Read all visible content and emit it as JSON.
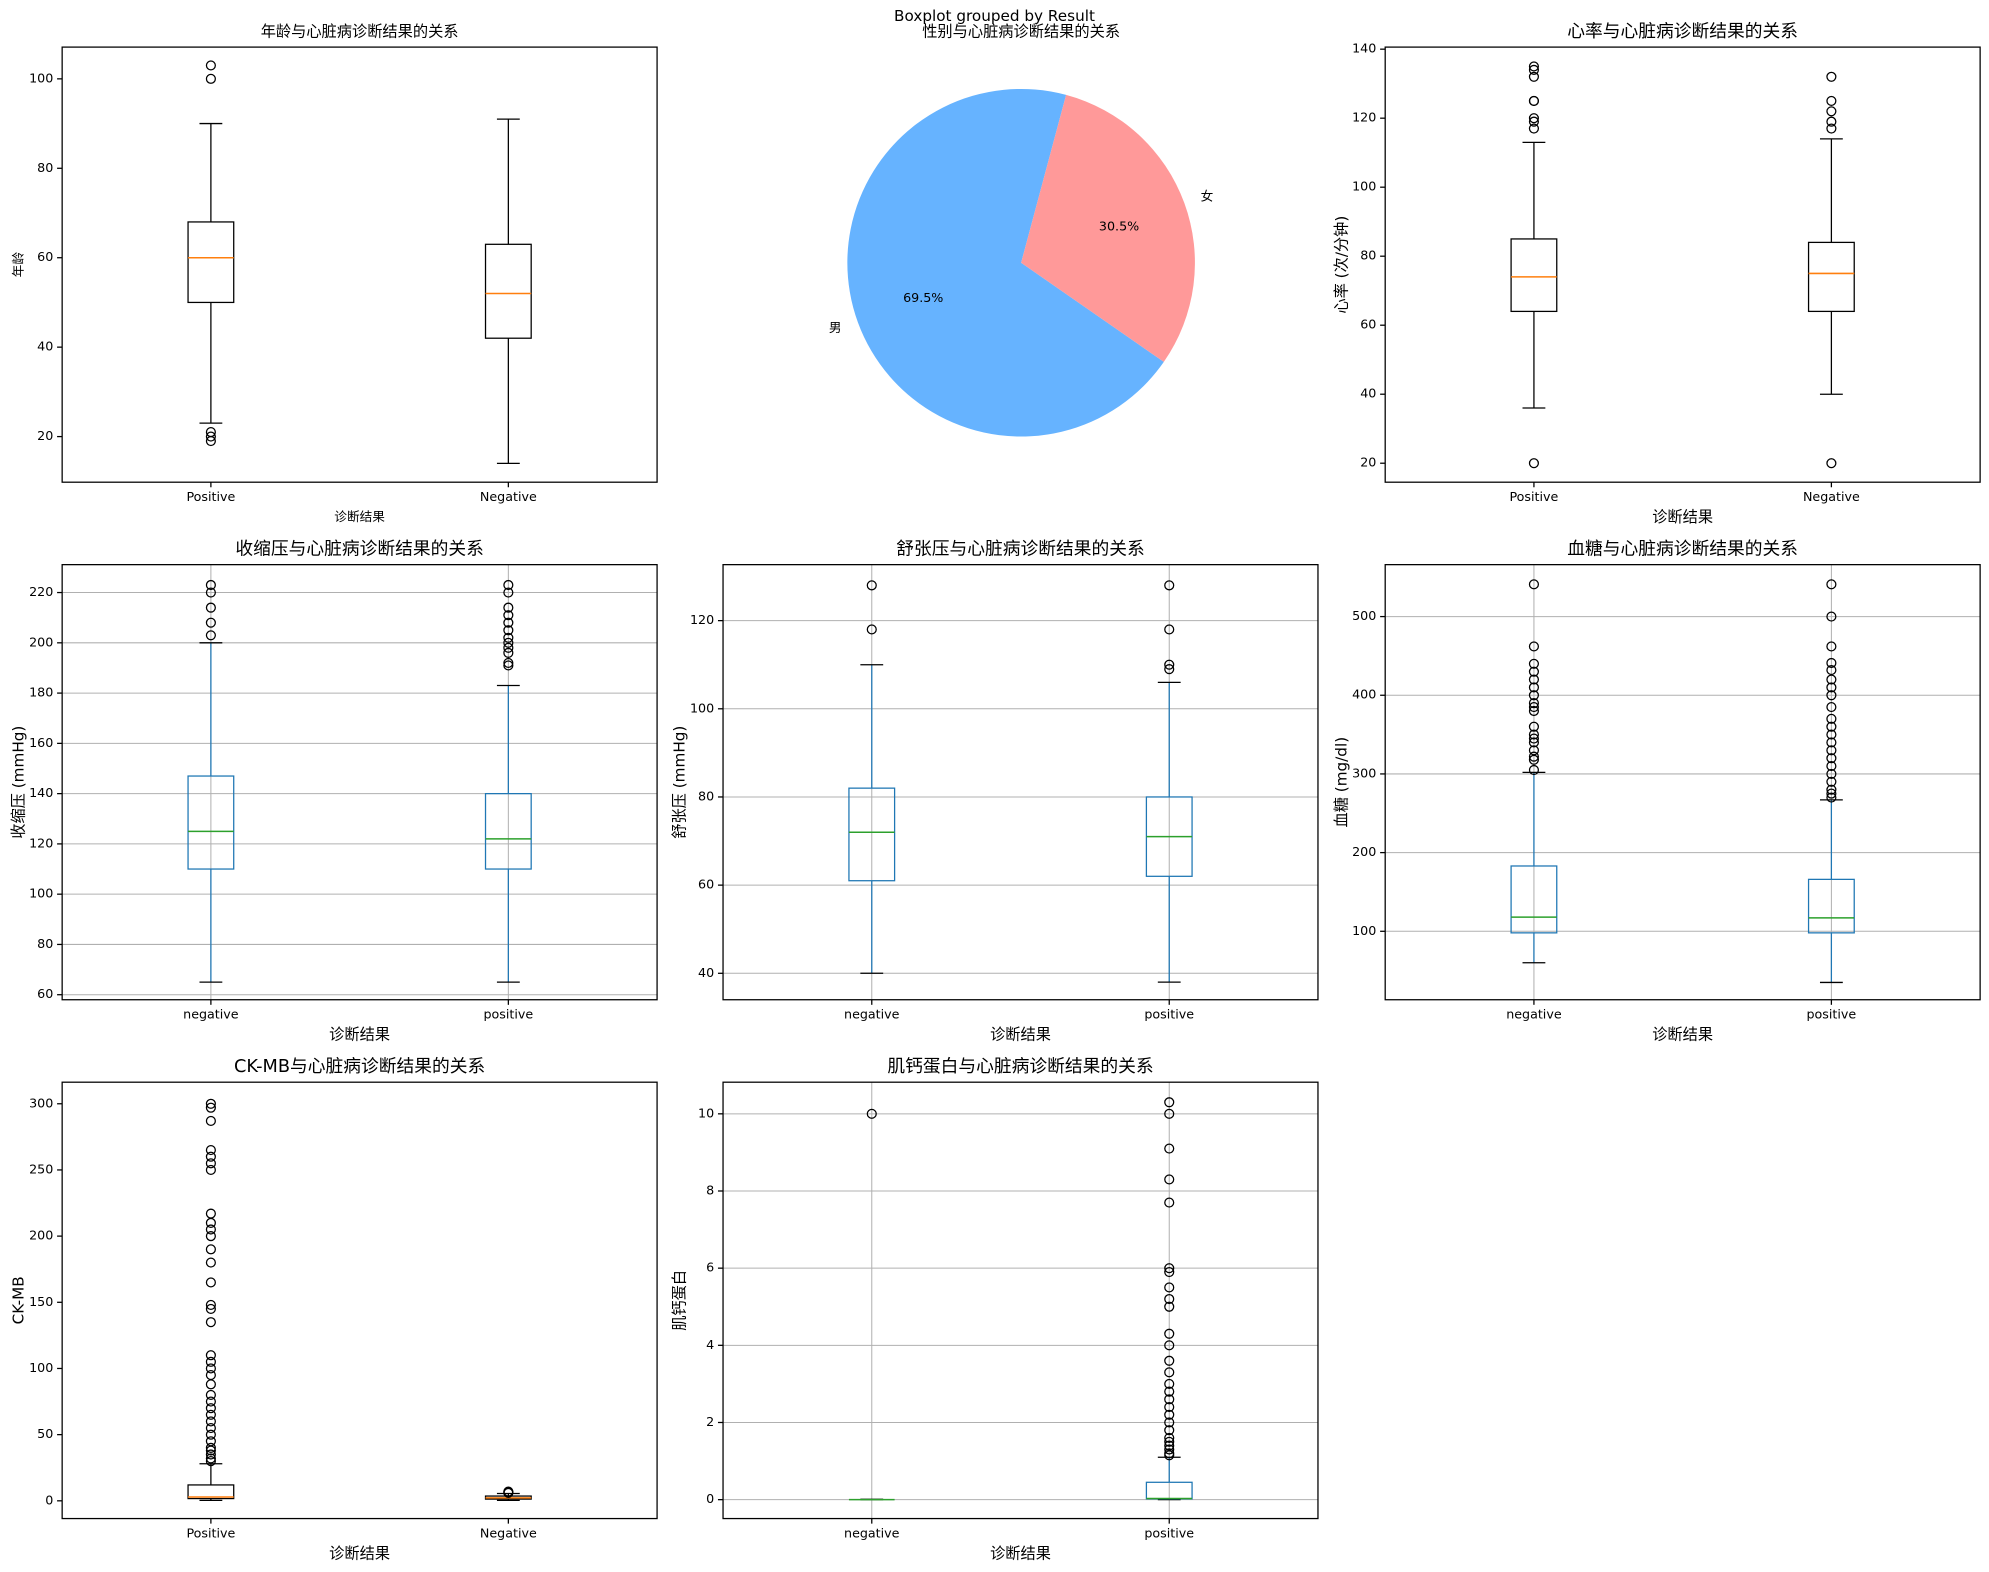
{
  "figure_title": "Boxplot grouped by Result",
  "chart_data": [
    {
      "type": "box",
      "title": "年龄与心脏病诊断结果的关系",
      "xlabel": "诊断结果",
      "ylabel": "年龄",
      "categories": [
        "Positive",
        "Negative"
      ],
      "boxes": [
        {
          "whislo": 23,
          "q1": 50,
          "med": 60,
          "q3": 68,
          "whishi": 90,
          "fliers": [
            19,
            20,
            21,
            100,
            103
          ]
        },
        {
          "whislo": 14,
          "q1": 42,
          "med": 52,
          "q3": 63,
          "whishi": 91,
          "fliers": []
        }
      ],
      "ylim": [
        9.8,
        107.1
      ],
      "yticks": [
        20,
        40,
        60,
        80,
        100
      ],
      "grid": false,
      "box_color": "#000000",
      "median_color": "#ff7f0e"
    },
    {
      "type": "pie",
      "title": "性别与心脏病诊断结果的关系",
      "categories": [
        "男",
        "女"
      ],
      "values": [
        69.5,
        30.5
      ],
      "value_labels": [
        "69.5%",
        "30.5%"
      ],
      "colors": [
        "#66b3ff",
        "#ff9999"
      ],
      "startangle": 75
    },
    {
      "type": "box",
      "title": "心率与心脏病诊断结果的关系",
      "xlabel": "诊断结果",
      "ylabel": "心率 (次/分钟)",
      "categories": [
        "Positive",
        "Negative"
      ],
      "boxes": [
        {
          "whislo": 36,
          "q1": 64,
          "med": 74,
          "q3": 85,
          "whishi": 113,
          "fliers": [
            20,
            117,
            119,
            120,
            125,
            125,
            132,
            134,
            135
          ]
        },
        {
          "whislo": 40,
          "q1": 64,
          "med": 75,
          "q3": 84,
          "whishi": 114,
          "fliers": [
            20,
            117,
            119,
            122,
            125,
            132
          ]
        }
      ],
      "ylim": [
        14.5,
        140.6
      ],
      "yticks": [
        20,
        40,
        60,
        80,
        100,
        120,
        140
      ],
      "grid": false,
      "box_color": "#000000",
      "median_color": "#ff7f0e"
    },
    {
      "type": "box",
      "title": "收缩压与心脏病诊断结果的关系",
      "xlabel": "诊断结果",
      "ylabel": "收缩压 (mmHg)",
      "categories": [
        "negative",
        "positive"
      ],
      "boxes": [
        {
          "whislo": 65,
          "q1": 110,
          "med": 125,
          "q3": 147,
          "whishi": 200,
          "fliers": [
            203,
            208,
            214,
            220,
            223
          ]
        },
        {
          "whislo": 65,
          "q1": 110,
          "med": 122,
          "q3": 140,
          "whishi": 183,
          "fliers": [
            191,
            192,
            196,
            198,
            200,
            202,
            205,
            208,
            211,
            214,
            220,
            223
          ]
        }
      ],
      "ylim": [
        58,
        231.1
      ],
      "yticks": [
        60,
        80,
        100,
        120,
        140,
        160,
        180,
        200,
        220
      ],
      "grid": true,
      "box_color": "#1f77b4",
      "median_color": "#2ca02c"
    },
    {
      "type": "box",
      "title": "舒张压与心脏病诊断结果的关系",
      "xlabel": "诊断结果",
      "ylabel": "舒张压 (mmHg)",
      "categories": [
        "negative",
        "positive"
      ],
      "boxes": [
        {
          "whislo": 40,
          "q1": 61,
          "med": 72,
          "q3": 82,
          "whishi": 110,
          "fliers": [
            118,
            128
          ]
        },
        {
          "whislo": 38,
          "q1": 62,
          "med": 71,
          "q3": 80,
          "whishi": 106,
          "fliers": [
            109,
            110,
            118,
            128
          ]
        }
      ],
      "ylim": [
        34,
        132.7
      ],
      "yticks": [
        40,
        60,
        80,
        100,
        120
      ],
      "grid": true,
      "box_color": "#1f77b4",
      "median_color": "#2ca02c"
    },
    {
      "type": "box",
      "title": "血糖与心脏病诊断结果的关系",
      "xlabel": "诊断结果",
      "ylabel": "血糖 (mg/dl)",
      "categories": [
        "negative",
        "positive"
      ],
      "boxes": [
        {
          "whislo": 60,
          "q1": 98,
          "med": 118,
          "q3": 183,
          "whishi": 302,
          "fliers": [
            305,
            318,
            322,
            330,
            340,
            345,
            350,
            360,
            380,
            385,
            390,
            400,
            410,
            420,
            430,
            440,
            462,
            541
          ]
        },
        {
          "whislo": 35,
          "q1": 98,
          "med": 117,
          "q3": 166,
          "whishi": 267,
          "fliers": [
            270,
            275,
            280,
            290,
            300,
            310,
            320,
            330,
            340,
            350,
            360,
            370,
            385,
            400,
            410,
            420,
            432,
            441,
            462,
            500,
            541
          ]
        }
      ],
      "ylim": [
        13,
        566
      ],
      "yticks": [
        100,
        200,
        300,
        400,
        500
      ],
      "grid": true,
      "box_color": "#1f77b4",
      "median_color": "#2ca02c"
    },
    {
      "type": "box",
      "title": "CK-MB与心脏病诊断结果的关系",
      "xlabel": "诊断结果",
      "ylabel": "CK-MB",
      "categories": [
        "Positive",
        "Negative"
      ],
      "boxes": [
        {
          "whislo": 0.3,
          "q1": 1.7,
          "med": 2.9,
          "q3": 12,
          "whishi": 28,
          "fliers": [
            30,
            32,
            35,
            38,
            40,
            45,
            50,
            55,
            60,
            65,
            70,
            75,
            80,
            88,
            95,
            100,
            105,
            110,
            135,
            145,
            148,
            165,
            180,
            190,
            200,
            205,
            210,
            217,
            250,
            255,
            260,
            265,
            287,
            297,
            300
          ]
        },
        {
          "whislo": 0.3,
          "q1": 1.3,
          "med": 2.2,
          "q3": 3.6,
          "whishi": 5.5,
          "fliers": [
            6,
            6.5,
            7
          ]
        }
      ],
      "ylim": [
        -13.4,
        316.3
      ],
      "yticks": [
        0,
        50,
        100,
        150,
        200,
        250,
        300
      ],
      "grid": false,
      "box_color": "#000000",
      "median_color": "#ff7f0e"
    },
    {
      "type": "box",
      "title": "肌钙蛋白与心脏病诊断结果的关系",
      "xlabel": "诊断结果",
      "ylabel": "肌钙蛋白",
      "categories": [
        "negative",
        "positive"
      ],
      "boxes": [
        {
          "whislo": 0,
          "q1": 0,
          "med": 0,
          "q3": 0,
          "whishi": 0.01,
          "fliers": [
            10
          ]
        },
        {
          "whislo": 0,
          "q1": 0.02,
          "med": 0.03,
          "q3": 0.45,
          "whishi": 1.1,
          "fliers": [
            1.15,
            1.2,
            1.3,
            1.4,
            1.5,
            1.6,
            1.8,
            2,
            2.2,
            2.4,
            2.6,
            2.8,
            3,
            3.3,
            3.6,
            4,
            4.3,
            5,
            5.2,
            5.5,
            5.9,
            6,
            7.7,
            8.3,
            9.1,
            10,
            10.3
          ]
        }
      ],
      "ylim": [
        -0.49,
        10.82
      ],
      "yticks": [
        0,
        2,
        4,
        6,
        8,
        10
      ],
      "grid": true,
      "box_color": "#1f77b4",
      "median_color": "#2ca02c"
    }
  ]
}
